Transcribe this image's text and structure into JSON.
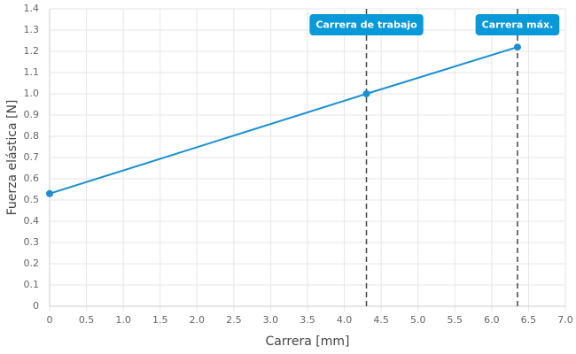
{
  "chart_data": {
    "type": "line",
    "x_label": "Carrera [mm]",
    "y_label": "Fuerza elástica [N]",
    "series": [
      {
        "name": "Fuerza",
        "color": "#1a8fd1",
        "x": [
          0,
          4.3,
          6.35
        ],
        "values": [
          0.53,
          1.0,
          1.22
        ]
      }
    ],
    "xlim": [
      0,
      7
    ],
    "xticks": [
      0,
      0.5,
      {
        "value": 1,
        "label": "1.0"
      },
      1.5,
      {
        "value": 2,
        "label": "2.0"
      },
      2.5,
      {
        "value": 3,
        "label": "3.0"
      },
      3.5,
      {
        "value": 4,
        "label": "4.0"
      },
      4.5,
      {
        "value": 5,
        "label": "5.0"
      },
      5.5,
      {
        "value": 6,
        "label": "6.0"
      },
      6.5,
      {
        "value": 7,
        "label": "7.0"
      }
    ],
    "ylim": [
      0,
      1.4
    ],
    "yticks": [
      0,
      0.1,
      0.2,
      0.3,
      0.4,
      0.5,
      0.6,
      0.7,
      0.8,
      0.9,
      {
        "value": 1,
        "label": "1.0"
      },
      1.1,
      1.2,
      1.3,
      1.4
    ],
    "grid": true,
    "annotations": [
      {
        "x": 4.3,
        "label": "Carrera de trabajo",
        "color": "#0899d9"
      },
      {
        "x": 6.35,
        "label": "Carrera máx.",
        "color": "#0899d9"
      }
    ]
  }
}
